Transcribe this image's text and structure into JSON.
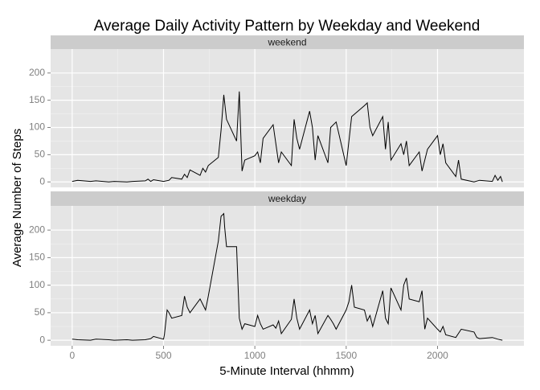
{
  "chart_data": {
    "type": "line",
    "title": "Average Daily Activity Pattern by Weekday and Weekend",
    "x_label": "5-Minute Interval (hhmm)",
    "y_label": "Average Number of Steps",
    "xlim": [
      -118,
      2473
    ],
    "xticks": [
      0,
      500,
      1000,
      1500,
      2000
    ],
    "ylim": [
      -10,
      244
    ],
    "yticks": [
      0,
      50,
      100,
      150,
      200
    ],
    "grid": true,
    "series": [
      {
        "name": "weekend",
        "color": "#000000",
        "x": [
          0,
          30,
          100,
          130,
          200,
          230,
          300,
          330,
          400,
          415,
          430,
          445,
          500,
          530,
          545,
          600,
          615,
          630,
          645,
          700,
          715,
          730,
          745,
          800,
          815,
          830,
          845,
          900,
          915,
          930,
          945,
          1000,
          1015,
          1030,
          1045,
          1100,
          1115,
          1130,
          1145,
          1200,
          1215,
          1230,
          1245,
          1300,
          1315,
          1330,
          1345,
          1400,
          1415,
          1445,
          1500,
          1530,
          1600,
          1615,
          1630,
          1645,
          1700,
          1715,
          1730,
          1745,
          1800,
          1815,
          1830,
          1845,
          1900,
          1915,
          1930,
          1945,
          2000,
          2015,
          2030,
          2045,
          2100,
          2115,
          2130,
          2200,
          2230,
          2300,
          2315,
          2330,
          2345,
          2355
        ],
        "values": [
          1,
          3,
          1,
          2,
          0,
          1,
          0,
          1,
          2,
          5,
          1,
          4,
          1,
          3,
          8,
          5,
          14,
          8,
          22,
          12,
          25,
          18,
          30,
          45,
          95,
          160,
          115,
          75,
          166,
          20,
          40,
          48,
          55,
          35,
          80,
          105,
          70,
          35,
          55,
          30,
          115,
          80,
          60,
          130,
          100,
          40,
          85,
          35,
          100,
          110,
          30,
          120,
          140,
          145,
          100,
          85,
          120,
          60,
          110,
          40,
          70,
          50,
          75,
          30,
          55,
          20,
          40,
          60,
          85,
          50,
          70,
          35,
          10,
          40,
          5,
          0,
          3,
          1,
          12,
          3,
          10,
          0
        ]
      },
      {
        "name": "weekday",
        "color": "#000000",
        "x": [
          0,
          30,
          100,
          130,
          200,
          230,
          300,
          330,
          400,
          430,
          445,
          500,
          505,
          520,
          530,
          545,
          600,
          615,
          630,
          645,
          700,
          715,
          730,
          745,
          800,
          815,
          830,
          835,
          845,
          900,
          915,
          930,
          945,
          1000,
          1015,
          1030,
          1045,
          1100,
          1115,
          1130,
          1145,
          1200,
          1215,
          1230,
          1245,
          1300,
          1315,
          1330,
          1345,
          1400,
          1415,
          1430,
          1445,
          1500,
          1515,
          1530,
          1545,
          1600,
          1615,
          1630,
          1645,
          1700,
          1715,
          1730,
          1745,
          1800,
          1815,
          1830,
          1845,
          1900,
          1915,
          1930,
          1945,
          2000,
          2015,
          2030,
          2045,
          2100,
          2130,
          2200,
          2215,
          2230,
          2300,
          2330,
          2355
        ],
        "values": [
          2,
          1,
          0,
          2,
          1,
          0,
          1,
          0,
          1,
          3,
          7,
          2,
          10,
          55,
          50,
          40,
          45,
          80,
          60,
          50,
          75,
          65,
          55,
          80,
          180,
          225,
          230,
          205,
          170,
          170,
          40,
          20,
          30,
          25,
          45,
          30,
          20,
          28,
          22,
          35,
          12,
          38,
          75,
          40,
          20,
          55,
          30,
          45,
          12,
          45,
          38,
          30,
          20,
          55,
          70,
          100,
          60,
          55,
          35,
          45,
          25,
          90,
          40,
          30,
          95,
          55,
          100,
          113,
          75,
          70,
          90,
          20,
          40,
          20,
          15,
          25,
          10,
          5,
          20,
          15,
          5,
          3,
          5,
          2,
          0
        ]
      }
    ]
  }
}
